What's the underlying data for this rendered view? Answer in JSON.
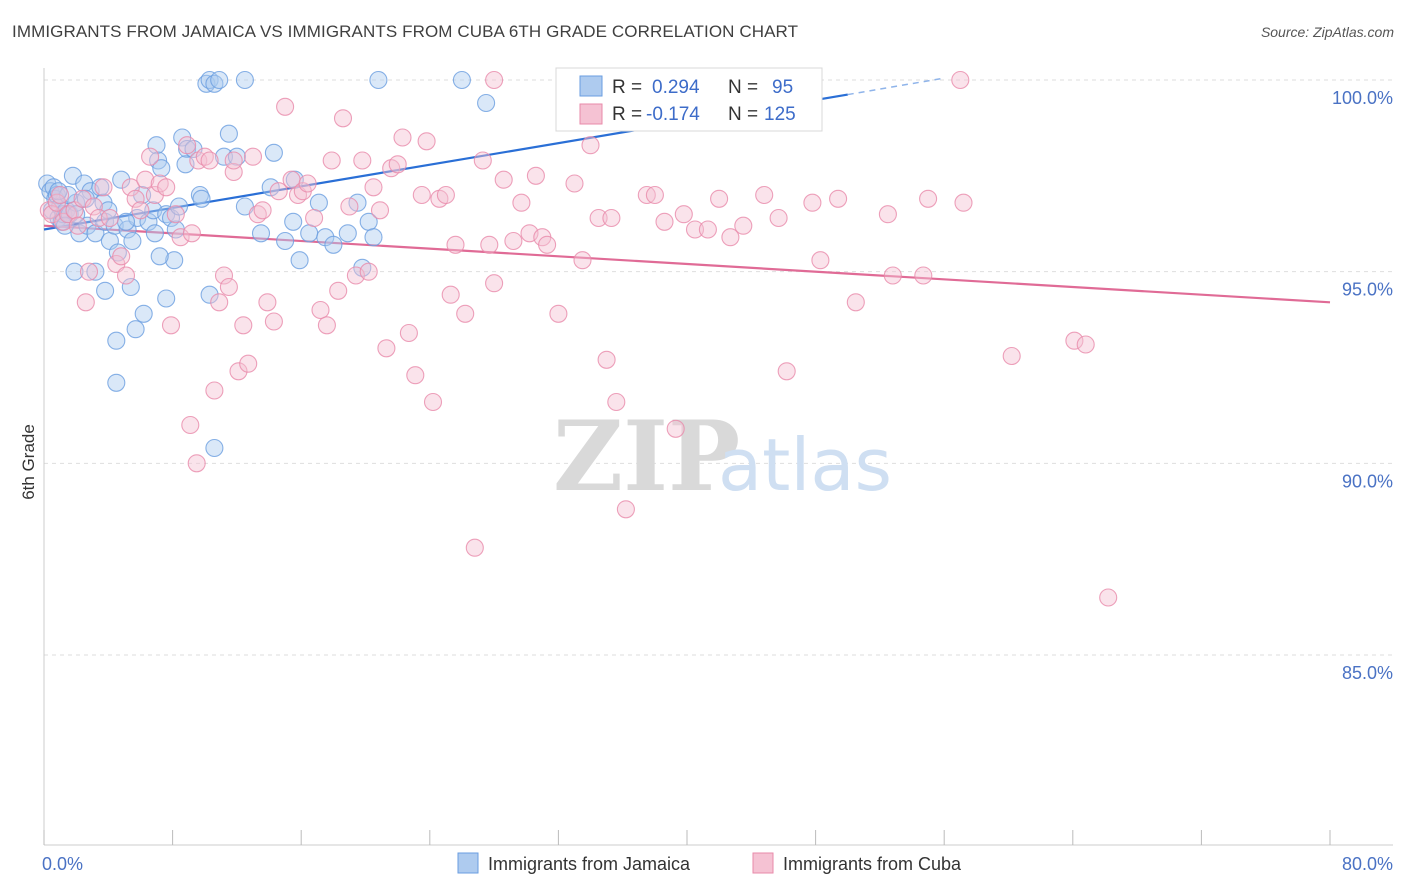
{
  "title": "IMMIGRANTS FROM JAMAICA VS IMMIGRANTS FROM CUBA 6TH GRADE CORRELATION CHART",
  "source": "Source: ZipAtlas.com",
  "watermark": {
    "zip": "ZIP",
    "atlas": "atlas"
  },
  "legend_box": {
    "rows": [
      {
        "r_label": "R =",
        "r_value": "0.294",
        "n_label": "N =",
        "n_value": "95"
      },
      {
        "r_label": "R =",
        "r_value": "-0.174",
        "n_label": "N =",
        "n_value": "125"
      }
    ]
  },
  "chart_data": {
    "type": "scatter",
    "title": "IMMIGRANTS FROM JAMAICA VS IMMIGRANTS FROM CUBA 6TH GRADE CORRELATION CHART",
    "xlabel": "",
    "ylabel": "6th Grade",
    "x_tick_labels": [
      "0.0%",
      "80.0%"
    ],
    "y_tick_labels": [
      "100.0%",
      "95.0%",
      "90.0%",
      "85.0%"
    ],
    "y_ticks": [
      100,
      95,
      90,
      85
    ],
    "xlim": [
      0,
      80
    ],
    "ylim": [
      80.5,
      100.3
    ],
    "grid": true,
    "legend_position": "bottom",
    "series": [
      {
        "name": "Immigrants from Jamaica",
        "color": "#6a9ee0",
        "fill": "#aecbef",
        "R": 0.294,
        "N": 95,
        "trend": {
          "x": [
            0,
            50
          ],
          "y": [
            96.1,
            99.62
          ],
          "dashed_to": [
            56,
            100.05
          ]
        },
        "points": [
          [
            0.2,
            97.3
          ],
          [
            0.4,
            97.1
          ],
          [
            0.5,
            96.6
          ],
          [
            0.6,
            97.2
          ],
          [
            0.7,
            96.9
          ],
          [
            0.8,
            97.0
          ],
          [
            0.9,
            96.4
          ],
          [
            1.0,
            96.7
          ],
          [
            1.1,
            96.3
          ],
          [
            1.2,
            96.5
          ],
          [
            1.4,
            96.6
          ],
          [
            1.6,
            96.5
          ],
          [
            1.8,
            97.5
          ],
          [
            2.0,
            96.8
          ],
          [
            2.2,
            96.0
          ],
          [
            2.5,
            97.3
          ],
          [
            2.7,
            96.2
          ],
          [
            2.9,
            97.1
          ],
          [
            3.2,
            96.0
          ],
          [
            3.5,
            97.2
          ],
          [
            3.8,
            96.3
          ],
          [
            4.1,
            95.8
          ],
          [
            4.4,
            96.2
          ],
          [
            4.8,
            97.4
          ],
          [
            5.2,
            96.1
          ],
          [
            5.5,
            95.8
          ],
          [
            5.8,
            96.4
          ],
          [
            6.1,
            97.0
          ],
          [
            6.5,
            96.3
          ],
          [
            6.8,
            96.6
          ],
          [
            7.0,
            98.3
          ],
          [
            7.1,
            97.9
          ],
          [
            7.3,
            97.7
          ],
          [
            7.6,
            96.5
          ],
          [
            7.9,
            96.4
          ],
          [
            8.2,
            96.1
          ],
          [
            8.6,
            98.5
          ],
          [
            8.9,
            98.2
          ],
          [
            9.3,
            98.2
          ],
          [
            9.7,
            97.0
          ],
          [
            10.1,
            99.9
          ],
          [
            10.3,
            100.0
          ],
          [
            10.6,
            99.9
          ],
          [
            10.9,
            100.0
          ],
          [
            11.2,
            98.0
          ],
          [
            11.5,
            98.6
          ],
          [
            12.0,
            98.0
          ],
          [
            12.5,
            100.0
          ],
          [
            12.5,
            96.7
          ],
          [
            13.5,
            96.0
          ],
          [
            14.1,
            97.2
          ],
          [
            14.3,
            98.1
          ],
          [
            15.0,
            95.8
          ],
          [
            15.5,
            96.3
          ],
          [
            15.6,
            97.4
          ],
          [
            15.9,
            95.3
          ],
          [
            16.5,
            96.0
          ],
          [
            17.1,
            96.8
          ],
          [
            17.5,
            95.9
          ],
          [
            18.0,
            95.7
          ],
          [
            18.9,
            96.0
          ],
          [
            19.5,
            96.8
          ],
          [
            19.8,
            95.1
          ],
          [
            20.2,
            96.3
          ],
          [
            20.5,
            95.9
          ],
          [
            20.8,
            100.0
          ],
          [
            26.0,
            100.0
          ],
          [
            27.5,
            99.4
          ],
          [
            1.9,
            95.0
          ],
          [
            3.2,
            95.0
          ],
          [
            3.8,
            94.5
          ],
          [
            4.5,
            93.2
          ],
          [
            5.4,
            94.6
          ],
          [
            5.7,
            93.5
          ],
          [
            6.2,
            93.9
          ],
          [
            7.6,
            94.3
          ],
          [
            8.1,
            95.3
          ],
          [
            10.3,
            94.4
          ],
          [
            10.6,
            90.4
          ],
          [
            4.5,
            92.1
          ],
          [
            4.6,
            95.5
          ],
          [
            7.2,
            95.4
          ],
          [
            3.7,
            96.8
          ],
          [
            2.0,
            96.5
          ],
          [
            1.5,
            97.0
          ],
          [
            0.9,
            97.1
          ],
          [
            5.1,
            96.3
          ],
          [
            6.9,
            96.0
          ],
          [
            8.4,
            96.7
          ],
          [
            8.8,
            97.8
          ],
          [
            42.5,
            100.0
          ],
          [
            9.8,
            96.9
          ],
          [
            4.0,
            96.6
          ],
          [
            2.6,
            96.9
          ],
          [
            1.3,
            96.2
          ]
        ]
      },
      {
        "name": "Immigrants from Cuba",
        "color": "#e88aaa",
        "fill": "#f5c2d3",
        "R": -0.174,
        "N": 125,
        "trend": {
          "x": [
            0,
            80
          ],
          "y": [
            96.2,
            94.2
          ]
        },
        "points": [
          [
            0.3,
            96.6
          ],
          [
            0.5,
            96.5
          ],
          [
            0.8,
            96.8
          ],
          [
            1.0,
            97.0
          ],
          [
            1.2,
            96.3
          ],
          [
            1.5,
            96.5
          ],
          [
            1.9,
            96.6
          ],
          [
            2.1,
            96.2
          ],
          [
            2.4,
            96.9
          ],
          [
            2.6,
            94.2
          ],
          [
            2.8,
            95.0
          ],
          [
            3.1,
            96.7
          ],
          [
            3.4,
            96.4
          ],
          [
            3.7,
            97.2
          ],
          [
            4.1,
            96.4
          ],
          [
            4.5,
            95.2
          ],
          [
            4.8,
            95.4
          ],
          [
            5.1,
            94.9
          ],
          [
            5.4,
            97.2
          ],
          [
            5.7,
            96.9
          ],
          [
            6.0,
            96.6
          ],
          [
            6.3,
            97.4
          ],
          [
            6.6,
            98.0
          ],
          [
            6.9,
            97.0
          ],
          [
            7.2,
            97.3
          ],
          [
            7.6,
            97.2
          ],
          [
            7.9,
            93.6
          ],
          [
            8.2,
            96.5
          ],
          [
            8.5,
            95.9
          ],
          [
            8.9,
            98.3
          ],
          [
            9.2,
            96.0
          ],
          [
            9.6,
            97.9
          ],
          [
            10.0,
            98.0
          ],
          [
            10.3,
            97.9
          ],
          [
            10.6,
            91.9
          ],
          [
            10.9,
            94.2
          ],
          [
            11.2,
            94.9
          ],
          [
            11.5,
            94.6
          ],
          [
            11.8,
            97.6
          ],
          [
            12.1,
            92.4
          ],
          [
            12.4,
            93.6
          ],
          [
            12.7,
            92.6
          ],
          [
            13.0,
            98.0
          ],
          [
            13.3,
            96.5
          ],
          [
            13.6,
            96.6
          ],
          [
            13.9,
            94.2
          ],
          [
            14.3,
            93.7
          ],
          [
            14.6,
            97.1
          ],
          [
            15.0,
            99.3
          ],
          [
            15.4,
            97.4
          ],
          [
            15.8,
            97.0
          ],
          [
            16.1,
            97.1
          ],
          [
            16.4,
            97.3
          ],
          [
            16.8,
            96.4
          ],
          [
            17.2,
            94.0
          ],
          [
            17.6,
            93.6
          ],
          [
            17.9,
            97.9
          ],
          [
            18.3,
            94.5
          ],
          [
            18.6,
            99.0
          ],
          [
            19.0,
            96.7
          ],
          [
            19.4,
            94.9
          ],
          [
            19.8,
            97.9
          ],
          [
            20.2,
            95.0
          ],
          [
            20.5,
            97.2
          ],
          [
            20.9,
            96.6
          ],
          [
            21.3,
            93.0
          ],
          [
            21.6,
            97.7
          ],
          [
            22.0,
            97.8
          ],
          [
            22.3,
            98.5
          ],
          [
            22.7,
            93.4
          ],
          [
            23.1,
            92.3
          ],
          [
            23.5,
            97.0
          ],
          [
            23.8,
            98.4
          ],
          [
            24.2,
            91.6
          ],
          [
            24.6,
            96.9
          ],
          [
            25.0,
            97.0
          ],
          [
            25.3,
            94.4
          ],
          [
            25.6,
            95.7
          ],
          [
            26.2,
            93.9
          ],
          [
            26.8,
            87.8
          ],
          [
            27.3,
            97.9
          ],
          [
            27.7,
            95.7
          ],
          [
            28.0,
            94.7
          ],
          [
            28.6,
            97.4
          ],
          [
            29.2,
            95.8
          ],
          [
            29.7,
            96.8
          ],
          [
            30.2,
            96.0
          ],
          [
            30.6,
            97.5
          ],
          [
            31.0,
            95.9
          ],
          [
            31.3,
            95.7
          ],
          [
            32.0,
            93.9
          ],
          [
            33.0,
            97.3
          ],
          [
            33.5,
            95.3
          ],
          [
            34.0,
            98.3
          ],
          [
            34.5,
            96.4
          ],
          [
            35.0,
            92.7
          ],
          [
            35.3,
            96.4
          ],
          [
            35.6,
            91.6
          ],
          [
            36.2,
            88.8
          ],
          [
            37.5,
            97.0
          ],
          [
            38.0,
            97.0
          ],
          [
            38.6,
            96.3
          ],
          [
            39.3,
            90.9
          ],
          [
            39.8,
            96.5
          ],
          [
            40.5,
            96.1
          ],
          [
            41.3,
            96.1
          ],
          [
            42.0,
            96.9
          ],
          [
            42.7,
            95.9
          ],
          [
            43.5,
            96.2
          ],
          [
            44.8,
            97.0
          ],
          [
            45.7,
            96.4
          ],
          [
            46.2,
            92.4
          ],
          [
            47.8,
            96.8
          ],
          [
            48.3,
            95.3
          ],
          [
            49.4,
            96.9
          ],
          [
            50.5,
            94.2
          ],
          [
            52.5,
            96.5
          ],
          [
            52.8,
            94.9
          ],
          [
            54.7,
            94.9
          ],
          [
            55.0,
            96.9
          ],
          [
            57.2,
            96.8
          ],
          [
            60.2,
            92.8
          ],
          [
            64.1,
            93.2
          ],
          [
            64.8,
            93.1
          ],
          [
            66.2,
            86.5
          ],
          [
            57.0,
            100.0
          ],
          [
            11.8,
            97.9
          ],
          [
            28.0,
            100.0
          ],
          [
            9.1,
            91.0
          ],
          [
            9.5,
            90.0
          ]
        ]
      }
    ]
  },
  "legend": [
    {
      "label": "Immigrants from Jamaica",
      "swatch": "#aecbef",
      "border": "#6a9ee0"
    },
    {
      "label": "Immigrants from Cuba",
      "swatch": "#f5c2d3",
      "border": "#e88aaa"
    }
  ]
}
